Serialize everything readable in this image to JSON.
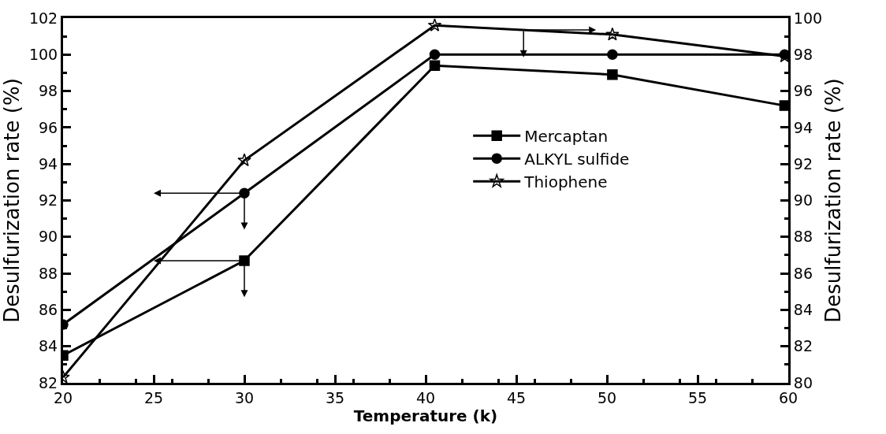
{
  "chart_data": {
    "type": "line",
    "xlabel": "Temperature (k)",
    "ylabel": "Desulfurization rate (%)",
    "y2label": "Desulfurization rate (%)",
    "x": [
      20,
      30,
      40.5,
      50.3,
      59.8
    ],
    "xlim": [
      20,
      60
    ],
    "xticks": [
      20,
      25,
      30,
      35,
      40,
      45,
      50,
      55,
      60
    ],
    "ylim": [
      82,
      102
    ],
    "yticks": [
      82,
      84,
      86,
      88,
      90,
      92,
      94,
      96,
      98,
      100,
      102
    ],
    "y2lim": [
      80,
      100
    ],
    "y2ticks": [
      80,
      82,
      84,
      86,
      88,
      90,
      92,
      94,
      96,
      98,
      100
    ],
    "legend": "right",
    "line_style": "solid",
    "series": [
      {
        "name": "Mercaptan",
        "color": "#000000",
        "marker": "square",
        "axis": "y",
        "values": [
          83.5,
          88.7,
          99.4,
          98.9,
          97.2
        ]
      },
      {
        "name": "ALKYL sulfide",
        "color": "#000000",
        "marker": "circle",
        "axis": "y",
        "values": [
          85.2,
          92.4,
          100,
          100,
          100
        ]
      },
      {
        "name": "Thiophene",
        "color": "#000000",
        "marker": "star",
        "axis": "y2",
        "values": [
          80.3,
          92.2,
          99.6,
          99.1,
          97.9
        ]
      }
    ]
  }
}
